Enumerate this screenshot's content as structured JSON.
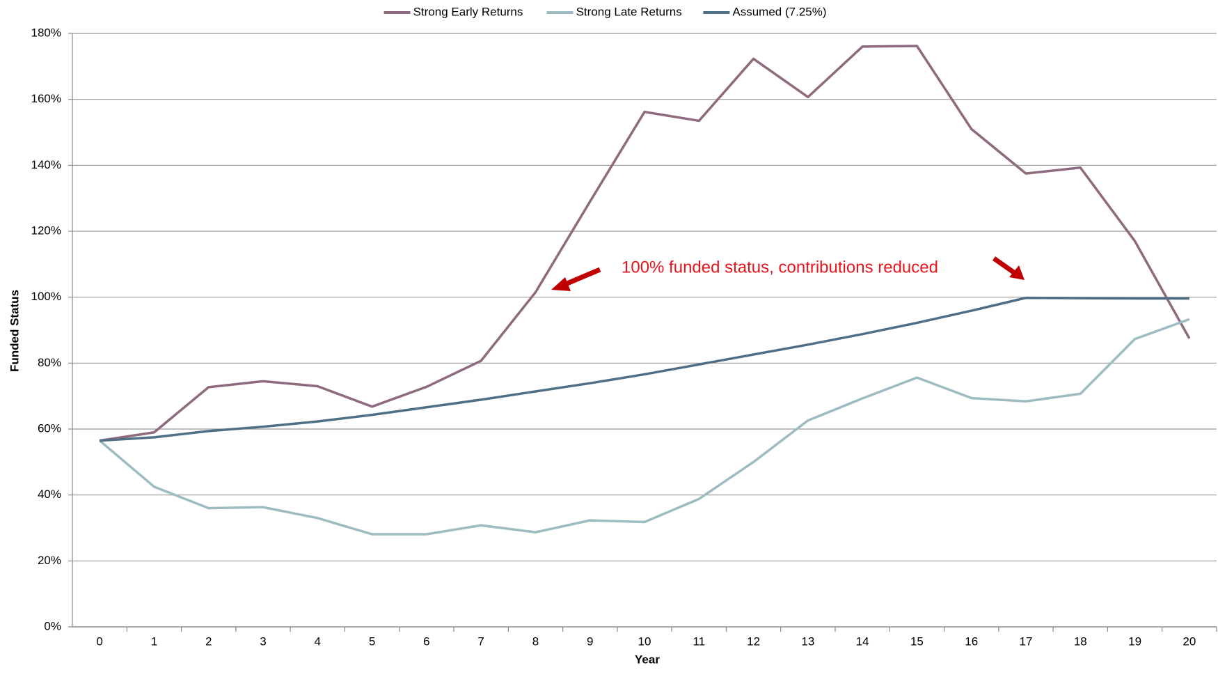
{
  "chart_data": {
    "type": "line",
    "x_label": "Year",
    "y_label": "Funded Status",
    "annotation": "100% funded status, contributions reduced",
    "categories": [
      "0",
      "1",
      "2",
      "3",
      "4",
      "5",
      "6",
      "7",
      "8",
      "9",
      "10",
      "11",
      "12",
      "13",
      "14",
      "15",
      "16",
      "17",
      "18",
      "19",
      "20"
    ],
    "series": [
      {
        "name": "Strong Early Returns",
        "color": "#8e6a7e",
        "values": [
          56.5,
          59,
          72.7,
          74.5,
          73,
          66.8,
          72.8,
          80.7,
          101.5,
          129,
          156.2,
          153.5,
          172.3,
          160.7,
          176,
          176.2,
          151,
          137.5,
          139.3,
          117,
          87.5
        ]
      },
      {
        "name": "Strong Late Returns",
        "color": "#9cbcc2",
        "values": [
          56.5,
          42.5,
          36,
          36.3,
          33,
          28.1,
          28.1,
          30.8,
          28.7,
          32.3,
          31.8,
          38.8,
          50,
          62.6,
          69.3,
          75.6,
          69.4,
          68.4,
          70.7,
          87.3,
          93.3
        ]
      },
      {
        "name": "Assumed (7.25%)",
        "color": "#4f6f86",
        "values": [
          56.5,
          57.5,
          59.4,
          60.7,
          62.3,
          64.3,
          66.6,
          68.9,
          71.4,
          73.9,
          76.6,
          79.6,
          82.6,
          85.6,
          88.8,
          92.2,
          95.9,
          99.8,
          99.7,
          99.6,
          99.6
        ]
      }
    ],
    "ylim": [
      0,
      180
    ],
    "yticks": [
      {
        "value": 0,
        "label": "0%"
      },
      {
        "value": 20,
        "label": "20%"
      },
      {
        "value": 40,
        "label": "40%"
      },
      {
        "value": 60,
        "label": "60%"
      },
      {
        "value": 80,
        "label": "80%"
      },
      {
        "value": 100,
        "label": "100%"
      },
      {
        "value": 120,
        "label": "120%"
      },
      {
        "value": 140,
        "label": "140%"
      },
      {
        "value": 160,
        "label": "160%"
      },
      {
        "value": 180,
        "label": "180%"
      }
    ],
    "grid": true,
    "legend": "top"
  }
}
